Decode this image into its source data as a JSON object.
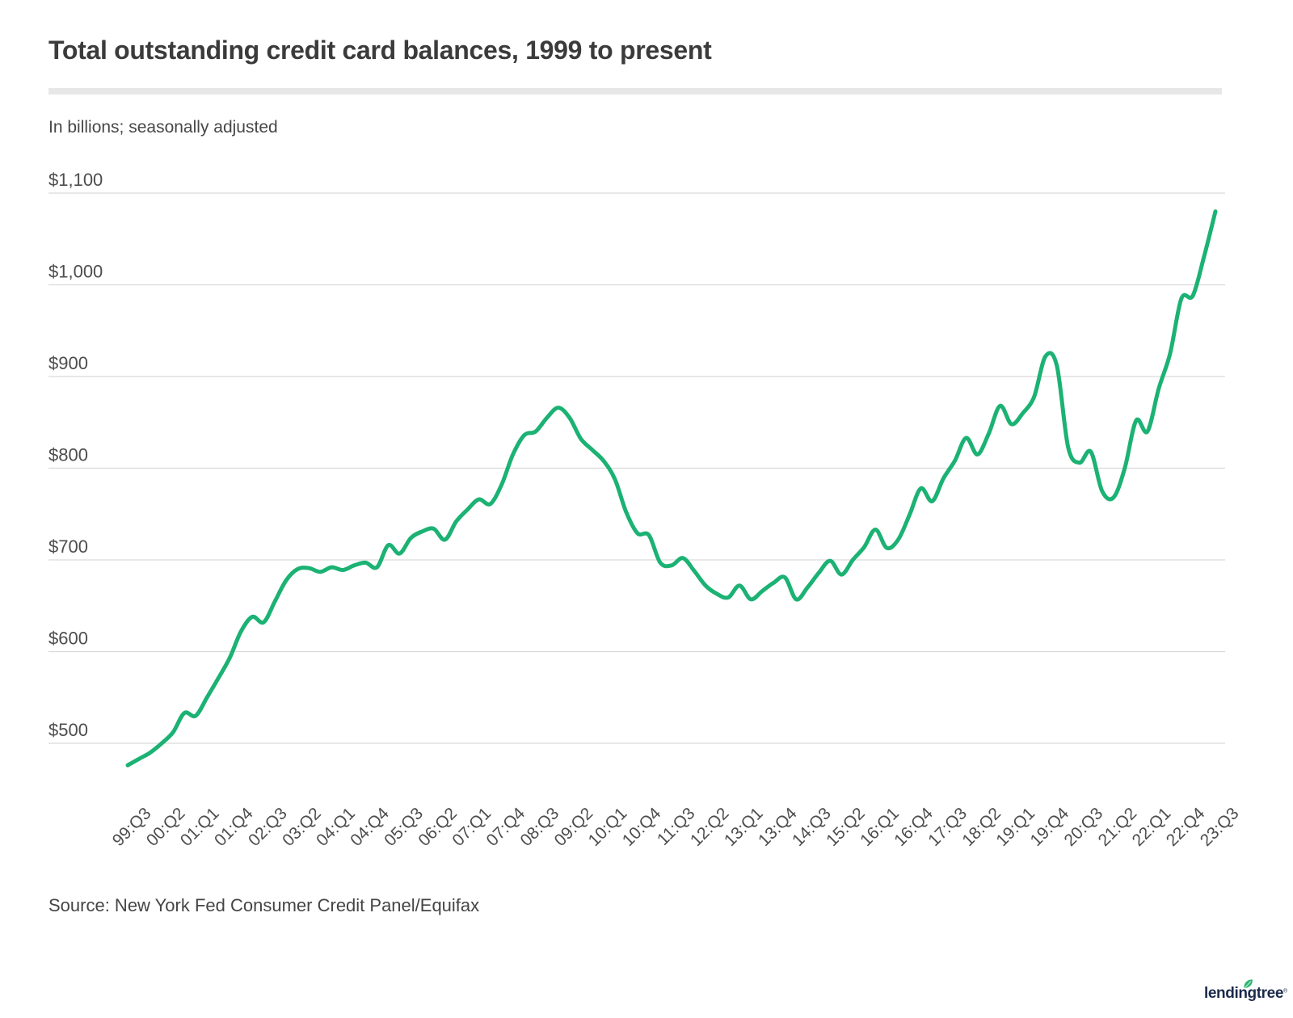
{
  "header": {
    "title": "Total outstanding credit card balances, 1999 to present",
    "subtitle": "In billions; seasonally adjusted"
  },
  "footer": {
    "source": "Source: New York Fed Consumer Credit Panel/Equifax",
    "logo_text": "lendingtree",
    "logo_reg": "®"
  },
  "colors": {
    "line": "#1bb273",
    "grid": "#d9d9d9",
    "title_text": "#3b3b3b",
    "body_text": "#474747",
    "axis_text": "#4d4d4d",
    "divider": "#e7e7e7",
    "logo_navy": "#1b2a4b",
    "logo_leaf": "#2bb673"
  },
  "chart_data": {
    "type": "line",
    "title": "Total outstanding credit card balances, 1999 to present",
    "subtitle": "In billions; seasonally adjusted",
    "unit": "USD billions",
    "series_name": "Total outstanding credit card balances",
    "legend": "none",
    "grid": "horizontal",
    "ylim": [
      500,
      1100
    ],
    "y_ticks": [
      1100,
      1000,
      900,
      800,
      700,
      600,
      500
    ],
    "y_tick_labels": [
      "$1,100",
      "$1,000",
      "$900",
      "$800",
      "$700",
      "$600",
      "$500"
    ],
    "x_tick_step": 3,
    "x_tick_labels": [
      "99:Q3",
      "00:Q2",
      "01:Q1",
      "01:Q4",
      "02:Q3",
      "03:Q2",
      "04:Q1",
      "04:Q4",
      "05:Q3",
      "06:Q2",
      "07:Q1",
      "07:Q4",
      "08:Q3",
      "09:Q2",
      "10:Q1",
      "10:Q4",
      "11:Q3",
      "12:Q2",
      "13:Q1",
      "13:Q4",
      "14:Q3",
      "15:Q2",
      "16:Q1",
      "16:Q4",
      "17:Q3",
      "18:Q2",
      "19:Q1",
      "19:Q4",
      "20:Q3",
      "21:Q2",
      "22:Q1",
      "22:Q4",
      "23:Q3"
    ],
    "quarters": [
      "99:Q3",
      "99:Q4",
      "00:Q1",
      "00:Q2",
      "00:Q3",
      "00:Q4",
      "01:Q1",
      "01:Q2",
      "01:Q3",
      "01:Q4",
      "02:Q1",
      "02:Q2",
      "02:Q3",
      "02:Q4",
      "03:Q1",
      "03:Q2",
      "03:Q3",
      "03:Q4",
      "04:Q1",
      "04:Q2",
      "04:Q3",
      "04:Q4",
      "05:Q1",
      "05:Q2",
      "05:Q3",
      "05:Q4",
      "06:Q1",
      "06:Q2",
      "06:Q3",
      "06:Q4",
      "07:Q1",
      "07:Q2",
      "07:Q3",
      "07:Q4",
      "08:Q1",
      "08:Q2",
      "08:Q3",
      "08:Q4",
      "09:Q1",
      "09:Q2",
      "09:Q3",
      "09:Q4",
      "10:Q1",
      "10:Q2",
      "10:Q3",
      "10:Q4",
      "11:Q1",
      "11:Q2",
      "11:Q3",
      "11:Q4",
      "12:Q1",
      "12:Q2",
      "12:Q3",
      "12:Q4",
      "13:Q1",
      "13:Q2",
      "13:Q3",
      "13:Q4",
      "14:Q1",
      "14:Q2",
      "14:Q3",
      "14:Q4",
      "15:Q1",
      "15:Q2",
      "15:Q3",
      "15:Q4",
      "16:Q1",
      "16:Q2",
      "16:Q3",
      "16:Q4",
      "17:Q1",
      "17:Q2",
      "17:Q3",
      "17:Q4",
      "18:Q1",
      "18:Q2",
      "18:Q3",
      "18:Q4",
      "19:Q1",
      "19:Q2",
      "19:Q3",
      "19:Q4",
      "20:Q1",
      "20:Q2",
      "20:Q3",
      "20:Q4",
      "21:Q1",
      "21:Q2",
      "21:Q3",
      "21:Q4",
      "22:Q1",
      "22:Q2",
      "22:Q3",
      "22:Q4",
      "23:Q1",
      "23:Q2",
      "23:Q3"
    ],
    "values": [
      476,
      483,
      490,
      500,
      512,
      533,
      530,
      550,
      571,
      593,
      622,
      638,
      632,
      655,
      678,
      690,
      691,
      687,
      692,
      689,
      694,
      697,
      692,
      716,
      707,
      724,
      731,
      734,
      722,
      742,
      755,
      766,
      761,
      782,
      815,
      836,
      840,
      855,
      866,
      855,
      832,
      820,
      808,
      788,
      752,
      729,
      727,
      697,
      694,
      702,
      688,
      672,
      663,
      659,
      672,
      657,
      666,
      675,
      681,
      657,
      670,
      686,
      699,
      684,
      700,
      714,
      733,
      713,
      722,
      749,
      778,
      764,
      789,
      808,
      833,
      815,
      838,
      868,
      848,
      860,
      878,
      922,
      912,
      823,
      806,
      818,
      775,
      768,
      800,
      852,
      840,
      887,
      925,
      985,
      988,
      1031,
      1080
    ]
  }
}
